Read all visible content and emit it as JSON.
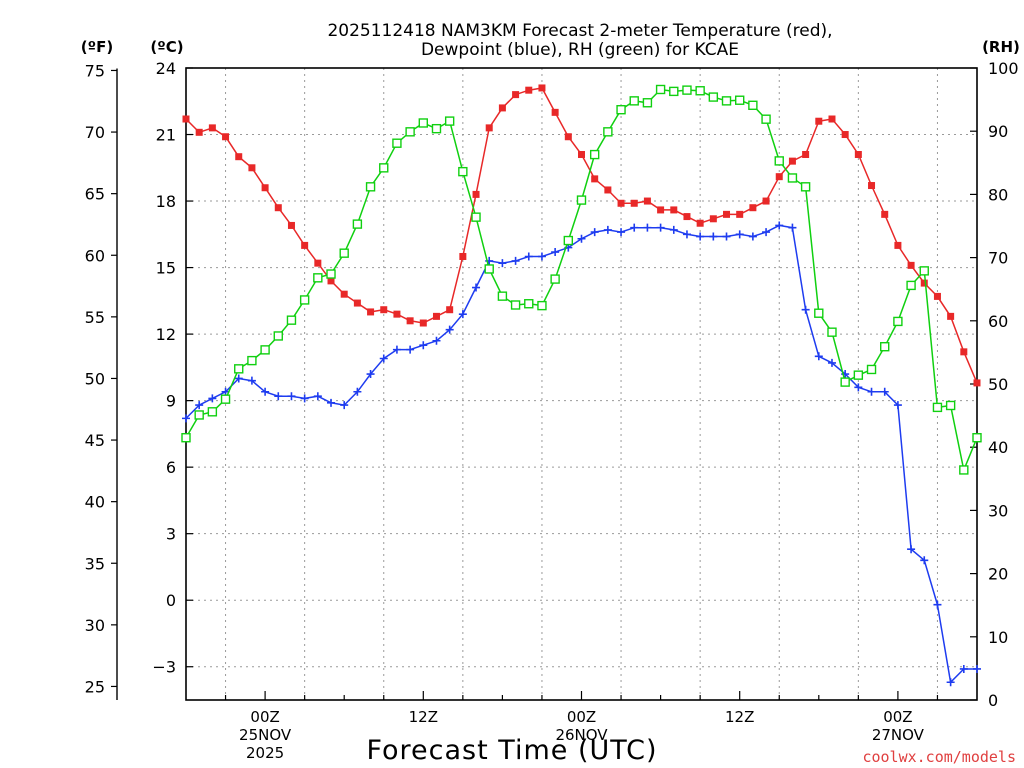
{
  "chart_data": {
    "type": "line",
    "title_line1": "2025112418 NAM3KM Forecast 2-meter Temperature (red),",
    "title_line2": "Dewpoint (blue), RH (green) for KCAE",
    "unit_f": "(ºF)",
    "unit_c": "(ºC)",
    "unit_rh": "(RH)",
    "xlabel": "Forecast Time (UTC)",
    "credit": "coolwx.com/models",
    "x_range": [
      -6,
      54
    ],
    "y_c_range": [
      -4.5,
      24
    ],
    "y_rh_range": [
      0,
      100
    ],
    "c_ticks": [
      "24",
      "21",
      "18",
      "15",
      "12",
      "9",
      "6",
      "3",
      "0",
      "-3"
    ],
    "f_ticks": [
      "75",
      "70",
      "65",
      "60",
      "55",
      "50",
      "45",
      "40",
      "35",
      "30",
      "25"
    ],
    "rh_ticks": [
      "100",
      "90",
      "80",
      "70",
      "60",
      "50",
      "40",
      "30",
      "20",
      "10",
      "0"
    ],
    "x_ticks": [
      {
        "hour": 0,
        "lines": [
          "00Z",
          "25NOV",
          "2025"
        ]
      },
      {
        "hour": 12,
        "lines": [
          "12Z"
        ]
      },
      {
        "hour": 24,
        "lines": [
          "00Z",
          "26NOV"
        ]
      },
      {
        "hour": 36,
        "lines": [
          "12Z"
        ]
      },
      {
        "hour": 48,
        "lines": [
          "00Z",
          "27NOV"
        ]
      }
    ],
    "hours": [
      -6,
      -5,
      -4,
      -3,
      -2,
      -1,
      0,
      1,
      2,
      3,
      4,
      5,
      6,
      7,
      8,
      9,
      10,
      11,
      12,
      13,
      14,
      15,
      16,
      17,
      18,
      19,
      20,
      21,
      22,
      23,
      24,
      25,
      26,
      27,
      28,
      29,
      30,
      31,
      32,
      33,
      34,
      35,
      36,
      37,
      38,
      39,
      40,
      41,
      42,
      43,
      44,
      45,
      46,
      47,
      48,
      49,
      50,
      51,
      52,
      53,
      54
    ],
    "series": [
      {
        "name": "Temperature",
        "unit": "C",
        "color": "#e82828",
        "marker": "filled-square",
        "values": [
          21.7,
          21.1,
          21.3,
          20.9,
          20.0,
          19.5,
          18.6,
          17.7,
          16.9,
          16.0,
          15.2,
          14.4,
          13.8,
          13.4,
          13.0,
          13.1,
          12.9,
          12.6,
          12.5,
          12.8,
          13.1,
          15.5,
          18.3,
          21.3,
          22.2,
          22.8,
          23.0,
          23.1,
          22.0,
          20.9,
          20.1,
          19.0,
          18.5,
          17.9,
          17.9,
          18.0,
          17.6,
          17.6,
          17.3,
          17.0,
          17.2,
          17.4,
          17.4,
          17.7,
          18.0,
          19.1,
          19.8,
          20.1,
          21.6,
          21.7,
          21.0,
          20.1,
          18.7,
          17.4,
          16.0,
          15.1,
          14.3,
          13.7,
          12.8,
          11.2,
          9.8
        ]
      },
      {
        "name": "Dewpoint",
        "unit": "C",
        "color": "#1e3cf0",
        "marker": "plus",
        "values": [
          8.2,
          8.8,
          9.1,
          9.4,
          10.0,
          9.9,
          9.4,
          9.2,
          9.2,
          9.1,
          9.2,
          8.9,
          8.8,
          9.4,
          10.2,
          10.9,
          11.3,
          11.3,
          11.5,
          11.7,
          12.2,
          12.9,
          14.1,
          15.3,
          15.2,
          15.3,
          15.5,
          15.5,
          15.7,
          15.9,
          16.3,
          16.6,
          16.7,
          16.6,
          16.8,
          16.8,
          16.8,
          16.7,
          16.5,
          16.4,
          16.4,
          16.4,
          16.5,
          16.4,
          16.6,
          16.9,
          16.8,
          13.1,
          11.0,
          10.7,
          10.2,
          9.6,
          9.4,
          9.4,
          8.8,
          2.3,
          1.8,
          -0.2,
          -3.7,
          -3.1,
          -3.1
        ]
      },
      {
        "name": "RH",
        "unit": "%",
        "color": "#10d010",
        "marker": "open-square",
        "values": [
          41.5,
          45.1,
          45.6,
          47.6,
          52.4,
          53.7,
          55.4,
          57.6,
          60.1,
          63.3,
          66.8,
          67.4,
          70.7,
          75.3,
          81.2,
          84.2,
          88.1,
          89.9,
          91.3,
          90.4,
          91.6,
          83.6,
          76.4,
          68.2,
          63.9,
          62.5,
          62.7,
          62.4,
          66.6,
          72.7,
          79.1,
          86.3,
          89.9,
          93.4,
          94.8,
          94.5,
          96.6,
          96.3,
          96.5,
          96.4,
          95.4,
          94.8,
          94.9,
          94.1,
          91.9,
          85.3,
          82.6,
          81.2,
          61.2,
          58.2,
          50.3,
          51.4,
          52.3,
          55.9,
          59.9,
          65.6,
          67.9,
          46.3,
          46.6,
          36.4,
          41.5
        ]
      }
    ]
  }
}
